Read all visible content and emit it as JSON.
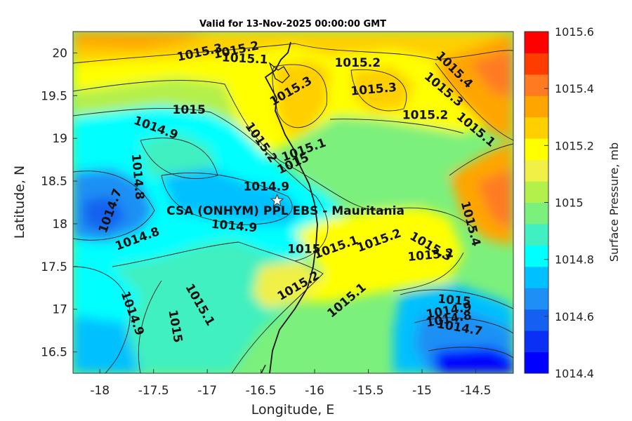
{
  "title": "Valid for 13-Nov-2025 00:00:00 GMT",
  "xlabel": "Longitude, E",
  "ylabel": "Latitude, N",
  "colorbar_label": "Surface Pressure, mb",
  "station": {
    "name": "CSA (ONHYM) PPL EBS  - Mauritania",
    "lon": -16.35,
    "lat": 18.27
  },
  "x_ticks": [
    "-18",
    "-17.5",
    "-17",
    "-16.5",
    "-16",
    "-15.5",
    "-15",
    "-14.5"
  ],
  "y_ticks": [
    "20",
    "19.5",
    "19",
    "18.5",
    "18",
    "17.5",
    "17",
    "16.5"
  ],
  "colorbar_ticks": [
    "1015.6",
    "1015.4",
    "1015.2",
    "1015",
    "1014.8",
    "1014.6",
    "1014.4"
  ],
  "colors": {
    "levels": [
      "#0000ff",
      "#0a2ff5",
      "#1460f0",
      "#1e90f5",
      "#00c0ff",
      "#00ffff",
      "#40f0c0",
      "#7cf07c",
      "#b4f04c",
      "#f0f046",
      "#ffff00",
      "#ffcf00",
      "#ffa500",
      "#ff7a20",
      "#ff3c00",
      "#ff0000"
    ],
    "coast": "#111111",
    "contour": "#222222"
  },
  "chart_data": {
    "type": "contour",
    "variable": "Surface Pressure",
    "units": "mb",
    "xlim": [
      -18.25,
      -14.15
    ],
    "ylim": [
      16.25,
      20.25
    ],
    "clim": [
      1014.4,
      1015.6
    ],
    "contour_labels": [
      {
        "text": "1015.3",
        "lon": -17.07,
        "lat": 20.0,
        "rot": -12
      },
      {
        "text": "1015.2",
        "lon": -16.73,
        "lat": 20.03,
        "rot": -12
      },
      {
        "text": "1015.1",
        "lon": -16.65,
        "lat": 19.93,
        "rot": 3
      },
      {
        "text": "1015.3",
        "lon": -16.22,
        "lat": 19.55,
        "rot": -30
      },
      {
        "text": "1015.2",
        "lon": -15.6,
        "lat": 19.88,
        "rot": 0
      },
      {
        "text": "1015.3",
        "lon": -15.45,
        "lat": 19.57,
        "rot": -5
      },
      {
        "text": "1015.4",
        "lon": -14.7,
        "lat": 19.8,
        "rot": 45
      },
      {
        "text": "1015.3",
        "lon": -14.8,
        "lat": 19.57,
        "rot": 40
      },
      {
        "text": "1015.2",
        "lon": -14.97,
        "lat": 19.27,
        "rot": 0
      },
      {
        "text": "1015.1",
        "lon": -14.5,
        "lat": 19.1,
        "rot": 40
      },
      {
        "text": "1015",
        "lon": -17.17,
        "lat": 19.33,
        "rot": 0
      },
      {
        "text": "1014.9",
        "lon": -17.48,
        "lat": 19.12,
        "rot": 20
      },
      {
        "text": "1014.8",
        "lon": -17.65,
        "lat": 18.55,
        "rot": 85
      },
      {
        "text": "1015.2",
        "lon": -16.5,
        "lat": 18.95,
        "rot": 55
      },
      {
        "text": "1015.1",
        "lon": -16.1,
        "lat": 18.86,
        "rot": -20
      },
      {
        "text": "1015",
        "lon": -16.2,
        "lat": 18.7,
        "rot": -25
      },
      {
        "text": "1014.9",
        "lon": -16.45,
        "lat": 18.43,
        "rot": 0
      },
      {
        "text": "1014.7",
        "lon": -17.9,
        "lat": 18.15,
        "rot": -70
      },
      {
        "text": "1014.8",
        "lon": -17.65,
        "lat": 17.82,
        "rot": -20
      },
      {
        "text": "1014.9",
        "lon": -16.75,
        "lat": 17.97,
        "rot": 5
      },
      {
        "text": "1015",
        "lon": -16.1,
        "lat": 17.7,
        "rot": 0
      },
      {
        "text": "1015.1",
        "lon": -15.8,
        "lat": 17.72,
        "rot": -20
      },
      {
        "text": "1015.2",
        "lon": -15.4,
        "lat": 17.8,
        "rot": -20
      },
      {
        "text": "1015.3",
        "lon": -14.92,
        "lat": 17.73,
        "rot": 30
      },
      {
        "text": "1015.2",
        "lon": -14.92,
        "lat": 17.63,
        "rot": -5
      },
      {
        "text": "1015.4",
        "lon": -14.55,
        "lat": 18.0,
        "rot": 75
      },
      {
        "text": "1015.2",
        "lon": -16.15,
        "lat": 17.27,
        "rot": -30
      },
      {
        "text": "1015.1",
        "lon": -15.7,
        "lat": 17.1,
        "rot": -40
      },
      {
        "text": "1015.1",
        "lon": -17.07,
        "lat": 17.05,
        "rot": 60
      },
      {
        "text": "1014.9",
        "lon": -17.7,
        "lat": 16.95,
        "rot": 70
      },
      {
        "text": "1015",
        "lon": -17.3,
        "lat": 16.8,
        "rot": 80
      },
      {
        "text": "1015",
        "lon": -14.7,
        "lat": 17.1,
        "rot": 5
      },
      {
        "text": "1014.9",
        "lon": -14.75,
        "lat": 16.98,
        "rot": -10
      },
      {
        "text": "1014.8",
        "lon": -14.75,
        "lat": 16.88,
        "rot": -10
      },
      {
        "text": "1014.7",
        "lon": -14.65,
        "lat": 16.78,
        "rot": 10
      }
    ]
  }
}
